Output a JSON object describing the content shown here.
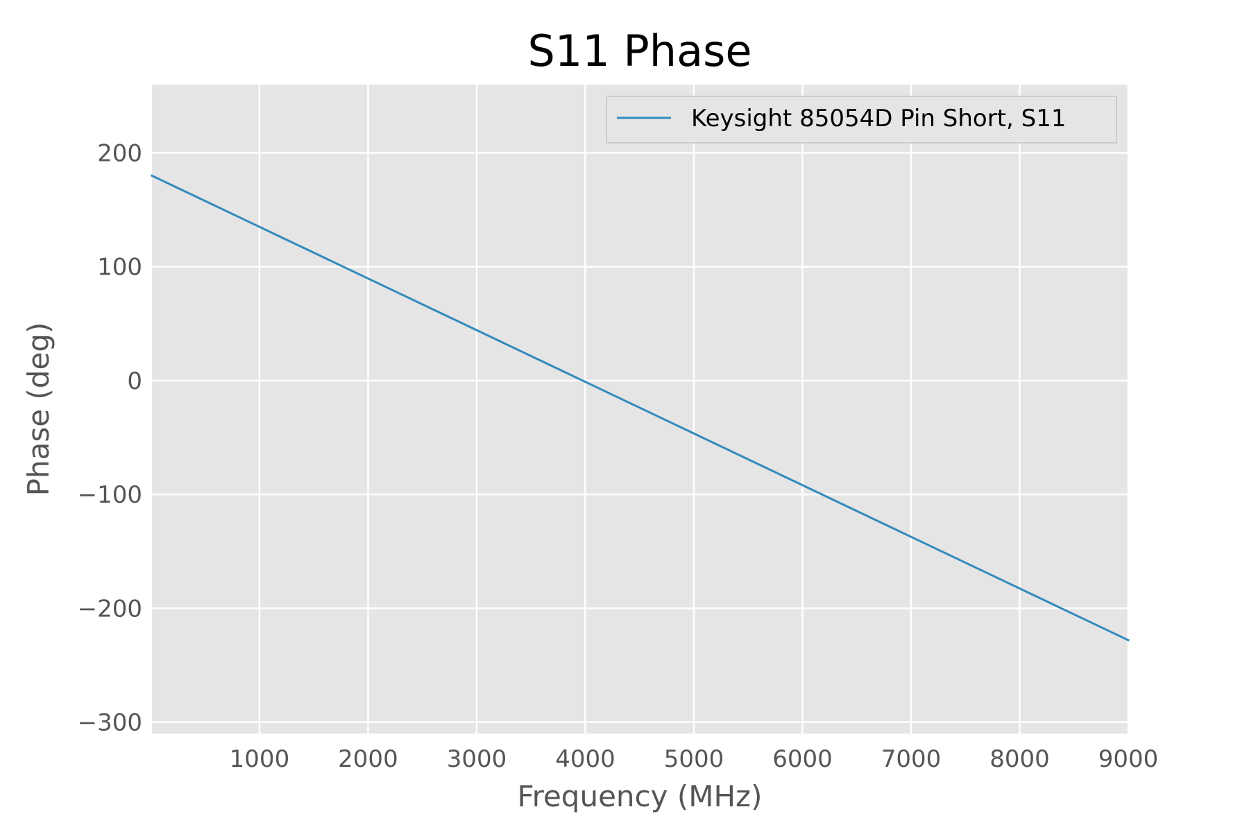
{
  "chart_data": {
    "type": "line",
    "title": "S11 Phase",
    "xlabel": "Frequency (MHz)",
    "ylabel": "Phase (deg)",
    "xlim": [
      10,
      9000
    ],
    "ylim": [
      -310,
      260
    ],
    "xticks": [
      1000,
      2000,
      3000,
      4000,
      5000,
      6000,
      7000,
      8000,
      9000
    ],
    "xtick_labels": [
      "1000",
      "2000",
      "3000",
      "4000",
      "5000",
      "6000",
      "7000",
      "8000",
      "9000"
    ],
    "yticks": [
      200,
      100,
      0,
      -100,
      -200,
      -300
    ],
    "ytick_labels": [
      "200",
      "100",
      "0",
      "−100",
      "−200",
      "−300"
    ],
    "grid": true,
    "legend_position": "top-right",
    "series": [
      {
        "name": "Keysight 85054D Pin Short, S11",
        "color": "#348abd",
        "x": [
          10,
          9000
        ],
        "y": [
          180,
          -228
        ]
      }
    ]
  },
  "colors": {
    "plot_background": "#e5e5e5",
    "grid": "#ffffff",
    "legend_background": "#e5e5e5",
    "legend_border": "#cccccc"
  }
}
